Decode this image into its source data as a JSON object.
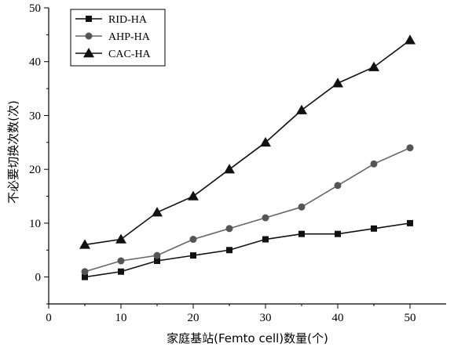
{
  "chart_data": {
    "type": "line",
    "xlabel": "家庭基站(Femto cell)数量(个)",
    "ylabel": "不必要切换次数(次)",
    "xlim": [
      0,
      55
    ],
    "ylim": [
      -5,
      50
    ],
    "xticks": [
      0,
      10,
      20,
      30,
      40,
      50
    ],
    "yticks": [
      0,
      10,
      20,
      30,
      40,
      50
    ],
    "x": [
      5,
      10,
      15,
      20,
      25,
      30,
      35,
      40,
      45,
      50
    ],
    "legend_position": "top-left",
    "grid": false,
    "series": [
      {
        "name": "RID-HA",
        "marker": "square",
        "color": "#111111",
        "line_color": "#111111",
        "values": [
          0,
          1,
          3,
          4,
          5,
          7,
          8,
          8,
          9,
          10
        ]
      },
      {
        "name": "AHP-HA",
        "marker": "circle",
        "color": "#555555",
        "line_color": "#666666",
        "values": [
          1,
          3,
          4,
          7,
          9,
          11,
          13,
          17,
          21,
          24
        ]
      },
      {
        "name": "CAC-HA",
        "marker": "triangle",
        "color": "#111111",
        "line_color": "#111111",
        "values": [
          6,
          7,
          12,
          15,
          20,
          25,
          31,
          36,
          39,
          44
        ]
      }
    ]
  }
}
